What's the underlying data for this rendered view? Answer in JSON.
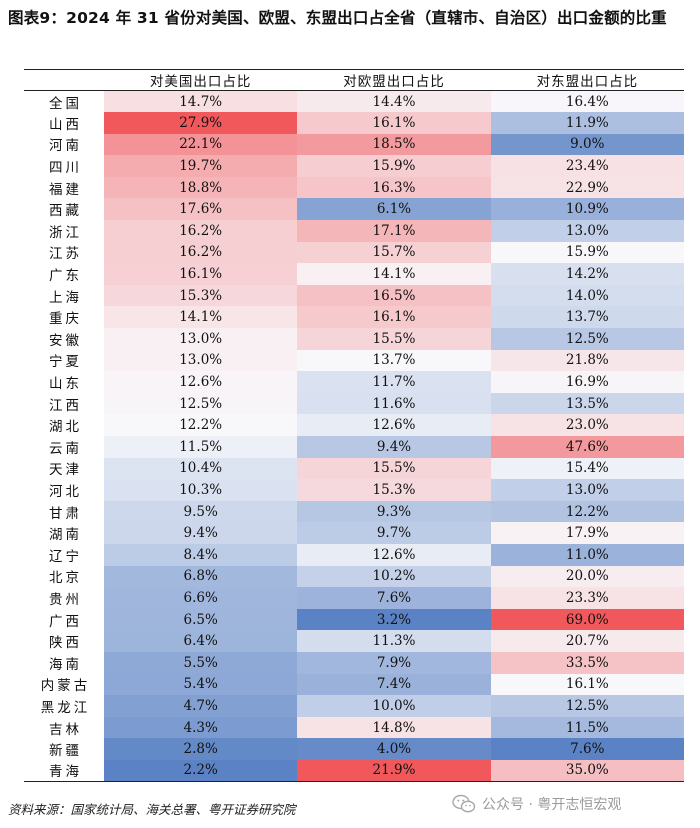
{
  "title": "图表9：2024 年 31 省份对美国、欧盟、东盟出口占全省（直辖市、自治区）出口金额的比重",
  "table": {
    "headers": [
      "",
      "对美国出口占比",
      "对欧盟出口占比",
      "对东盟出口占比"
    ],
    "rows": [
      [
        "全国",
        "14.7%",
        "14.4%",
        "16.4%"
      ],
      [
        "山西",
        "27.9%",
        "16.1%",
        "11.9%"
      ],
      [
        "河南",
        "22.1%",
        "18.5%",
        "9.0%"
      ],
      [
        "四川",
        "19.7%",
        "15.9%",
        "23.4%"
      ],
      [
        "福建",
        "18.8%",
        "16.3%",
        "22.9%"
      ],
      [
        "西藏",
        "17.6%",
        "6.1%",
        "10.9%"
      ],
      [
        "浙江",
        "16.2%",
        "17.1%",
        "13.0%"
      ],
      [
        "江苏",
        "16.2%",
        "15.7%",
        "15.9%"
      ],
      [
        "广东",
        "16.1%",
        "14.1%",
        "14.2%"
      ],
      [
        "上海",
        "15.3%",
        "16.5%",
        "14.0%"
      ],
      [
        "重庆",
        "14.1%",
        "16.1%",
        "13.7%"
      ],
      [
        "安徽",
        "13.0%",
        "15.5%",
        "12.5%"
      ],
      [
        "宁夏",
        "13.0%",
        "13.7%",
        "21.8%"
      ],
      [
        "山东",
        "12.6%",
        "11.7%",
        "16.9%"
      ],
      [
        "江西",
        "12.5%",
        "11.6%",
        "13.5%"
      ],
      [
        "湖北",
        "12.2%",
        "12.6%",
        "23.0%"
      ],
      [
        "云南",
        "11.5%",
        "9.4%",
        "47.6%"
      ],
      [
        "天津",
        "10.4%",
        "15.5%",
        "15.4%"
      ],
      [
        "河北",
        "10.3%",
        "15.3%",
        "13.0%"
      ],
      [
        "甘肃",
        "9.5%",
        "9.3%",
        "12.2%"
      ],
      [
        "湖南",
        "9.4%",
        "9.7%",
        "17.9%"
      ],
      [
        "辽宁",
        "8.4%",
        "12.6%",
        "11.0%"
      ],
      [
        "北京",
        "6.8%",
        "10.2%",
        "20.0%"
      ],
      [
        "贵州",
        "6.6%",
        "7.6%",
        "23.3%"
      ],
      [
        "广西",
        "6.5%",
        "3.2%",
        "69.0%"
      ],
      [
        "陕西",
        "6.4%",
        "11.3%",
        "20.7%"
      ],
      [
        "海南",
        "5.5%",
        "7.9%",
        "33.5%"
      ],
      [
        "内蒙古",
        "5.4%",
        "7.4%",
        "16.1%"
      ],
      [
        "黑龙江",
        "4.7%",
        "10.0%",
        "12.5%"
      ],
      [
        "吉林",
        "4.3%",
        "14.8%",
        "11.5%"
      ],
      [
        "新疆",
        "2.8%",
        "4.0%",
        "7.6%"
      ],
      [
        "青海",
        "2.2%",
        "21.9%",
        "35.0%"
      ]
    ]
  },
  "source": "资料来源：国家统计局、海关总署、粤开证券研究院",
  "watermark": "公众号 · 粤开志恒宏观",
  "colors": {
    "low": "#5b82c4",
    "mid": "#f8f8fb",
    "high": "#f0585c",
    "rule": "#222222"
  }
}
